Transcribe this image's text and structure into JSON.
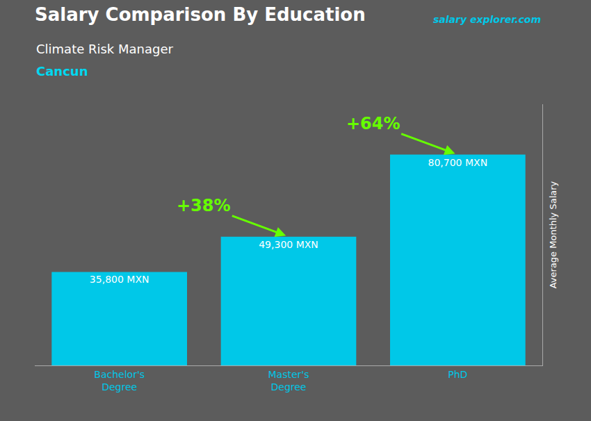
{
  "chart_data": {
    "type": "bar",
    "title": "Salary Comparison By Education",
    "subtitle": [
      "Climate Risk Manager",
      "Cancun"
    ],
    "ylabel": "Average Monthly Salary",
    "categories": [
      "Bachelor's\nDegree",
      "Master's\nDegree",
      "PhD"
    ],
    "values": [
      35800,
      49300,
      80700
    ],
    "value_labels": [
      "35,800 MXN",
      "49,300 MXN",
      "80,700 MXN"
    ],
    "data_labels": true,
    "color": "#00c8e8",
    "ylim": [
      0,
      100000
    ],
    "grid": false,
    "tick_labels": "x",
    "annotations": [
      "+38%",
      "+64%"
    ],
    "website": [
      "salary",
      "explorer.com"
    ]
  }
}
